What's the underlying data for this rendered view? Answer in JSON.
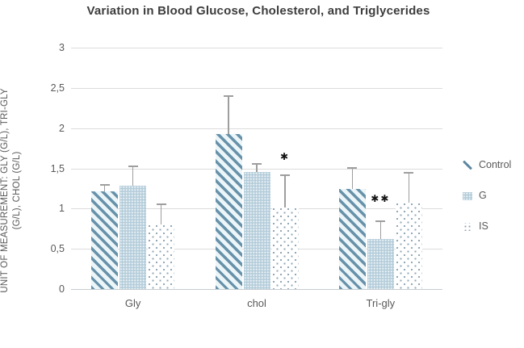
{
  "title": "Variation in Blood Glucose, Cholesterol, and Triglycerides",
  "chart_data": {
    "type": "bar",
    "title": "Variation in Blood Glucose, Cholesterol, and Triglycerides",
    "categories": [
      "Gly",
      "chol",
      "Tri-gly"
    ],
    "series": [
      {
        "name": "Control",
        "pattern": "diagonal-stripes",
        "values": [
          1.21,
          1.93,
          1.24
        ],
        "error_top": [
          1.29,
          2.4,
          1.51
        ]
      },
      {
        "name": "G",
        "pattern": "dense-check",
        "values": [
          1.28,
          1.45,
          0.62
        ],
        "error_top": [
          1.53,
          1.56,
          0.84
        ]
      },
      {
        "name": "IS",
        "pattern": "sparse-dots",
        "values": [
          0.8,
          1.01,
          1.07
        ],
        "error_top": [
          1.05,
          1.41,
          1.44
        ]
      }
    ],
    "error_bars": true,
    "annotations": [
      {
        "text": "✱",
        "category": "chol",
        "series": "IS",
        "value": 1.65
      },
      {
        "text": "✱✱",
        "category": "Tri-gly",
        "series": "G",
        "value": 1.12
      }
    ],
    "ylabel": "UNIT OF MEASUREMENT: GLY (G/L), TRI-GLY (G/L), CHOL (G/L)",
    "ylabel_lines": [
      "UNIT OF MEASUREMENT: GLY (G/L), TRI-GLY",
      "(G/L), CHOL (G/L)"
    ],
    "yticks": [
      "0",
      "0,5",
      "1",
      "1,5",
      "2",
      "2,5",
      "3"
    ],
    "ylim": [
      0,
      3
    ],
    "grid": true,
    "legend_position": "right",
    "legend": [
      "Control",
      "G",
      "IS"
    ]
  },
  "colors": {
    "stripe": "#6792aa",
    "stripe_bg": "#ecf5f8",
    "g_fill": "#b5cdda",
    "is_dot": "#90a7b5",
    "gridline": "#dcdcdc",
    "axis_text": "#595959",
    "title_text": "#3d3d3d",
    "error_bar": "#9e9e9e",
    "annotation": "#141414"
  }
}
